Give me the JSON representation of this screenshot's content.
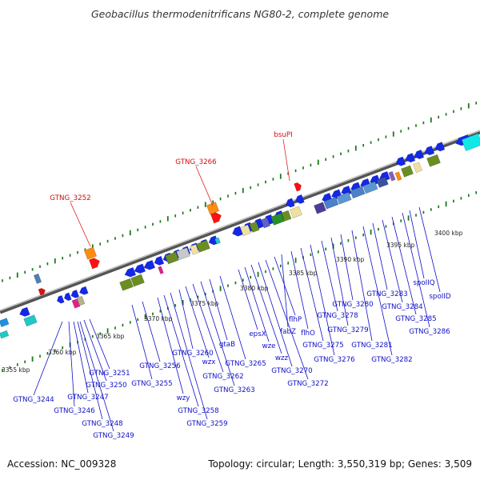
{
  "title": "Geobacillus thermodenitrificans NG80-2, complete genome",
  "footer": {
    "accession": "Accession: NC_009328",
    "topology": "Topology: circular; Length: 3,550,319 bp; Genes: 3,509"
  },
  "ticks": [
    "3355 kbp",
    "3360 kbp",
    "3365 kbp",
    "3370 kbp",
    "3375 kbp",
    "3380 kbp",
    "3385 kbp",
    "3390 kbp",
    "3395 kbp",
    "3400 kbp"
  ],
  "red_labels": [
    "GTNG_3252",
    "GTNG_3266",
    "bsuPI"
  ],
  "gene_labels": [
    "GTNG_3244",
    "GTNG_3246",
    "GTNG_3247",
    "GTNG_3248",
    "GTNG_3249",
    "GTNG_3250",
    "GTNG_3251",
    "GTNG_3255",
    "GTNG_3256",
    "wzy",
    "GTNG_3258",
    "GTNG_3259",
    "GTNG_3260",
    "wzx",
    "GTNG_3262",
    "GTNG_3263",
    "gtaB",
    "GTNG_3265",
    "epsX",
    "wze",
    "wzz",
    "GTNG_3270",
    "GTNG_3272",
    "flhP",
    "fabZ",
    "flhO",
    "GTNG_3275",
    "GTNG_3276",
    "GTNG_3278",
    "GTNG_3279",
    "GTNG_3280",
    "GTNG_3281",
    "GTNG_3282",
    "GTNG_3283",
    "GTNG_3284",
    "GTNG_3285",
    "GTNG_3286",
    "spoIIQ",
    "spoIID"
  ]
}
